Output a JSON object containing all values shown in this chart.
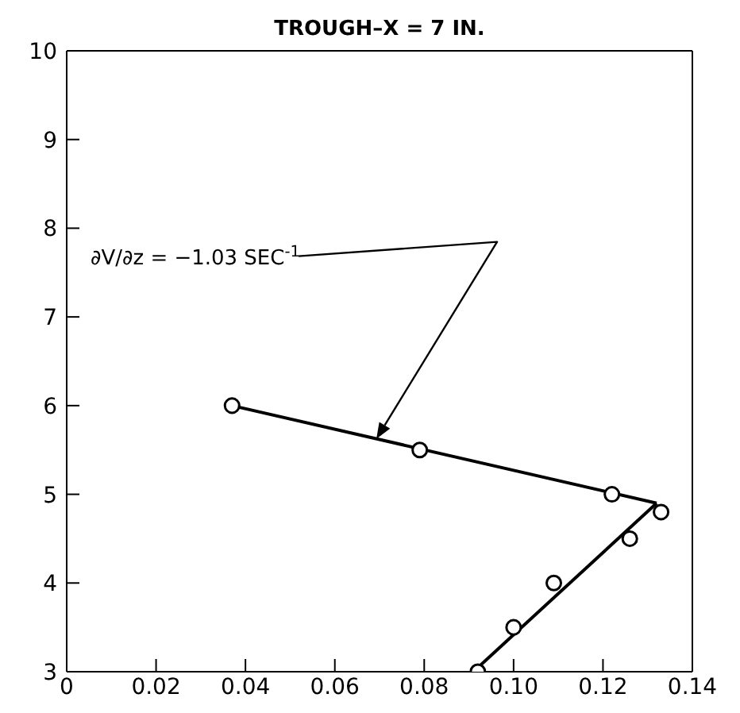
{
  "chart_data": {
    "type": "scatter",
    "title": "TROUGH–X = 7 IN.",
    "xlim": [
      0,
      0.14
    ],
    "xticks": [
      0,
      0.02,
      0.04,
      0.06,
      0.08,
      {
        "value": 0.1,
        "label": "0.10"
      },
      0.12,
      0.14
    ],
    "ylim": [
      3,
      10
    ],
    "yticks": [
      3,
      4,
      5,
      6,
      7,
      8,
      9,
      10
    ],
    "grid": false,
    "legend": false,
    "series": [
      {
        "color": "#000000",
        "marker": "circle",
        "x": [
          0.037,
          0.079,
          0.122,
          0.133,
          0.126,
          0.109,
          0.1,
          0.092
        ],
        "values": [
          6.0,
          5.5,
          5.0,
          4.8,
          4.5,
          4.0,
          3.5,
          3.0
        ]
      },
      {
        "type": "line",
        "color": "#000000",
        "marker": "none",
        "x": [
          0.037,
          0.132
        ],
        "values": [
          6.0,
          4.9
        ]
      },
      {
        "type": "line",
        "color": "#000000",
        "marker": "none",
        "x": [
          0.091,
          0.132
        ],
        "values": [
          3.0,
          4.9
        ]
      }
    ],
    "annotations": [
      "∂V/∂z = −1.03 SEC$^{-1}$"
    ]
  }
}
